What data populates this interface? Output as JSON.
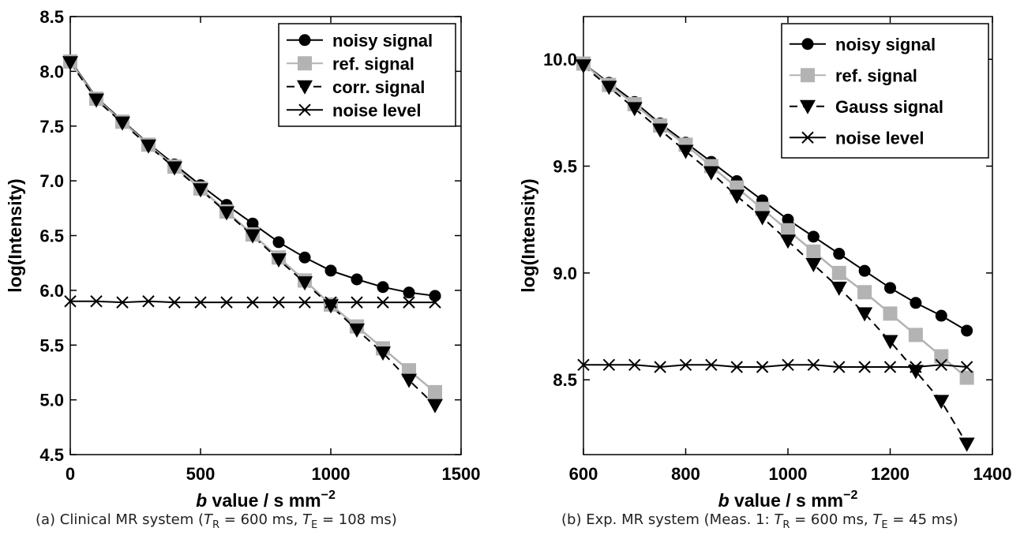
{
  "chart_data": [
    {
      "type": "line",
      "caption": "(a) Clinical MR system (T_R = 600 ms, T_E = 108 ms)",
      "caption_parts": {
        "prefix": "(a) Clinical MR system (",
        "t1": "T",
        "t1_sub": "R",
        "mid": " = 600 ms, ",
        "t2": "T",
        "t2_sub": "E",
        "suffix": " = 108 ms)"
      },
      "xlabel": {
        "italic": "b",
        "text": " value / s mm",
        "sup": "−2"
      },
      "ylabel": "log(Intensity)",
      "xlim": [
        0,
        1500
      ],
      "ylim": [
        4.5,
        8.5
      ],
      "xticks": [
        "0",
        "500",
        "1000",
        "1500"
      ],
      "yticks": [
        "4.5",
        "5.0",
        "5.5",
        "6.0",
        "6.5",
        "7.0",
        "7.5",
        "8.0",
        "8.5"
      ],
      "x": [
        0,
        100,
        200,
        300,
        400,
        500,
        600,
        700,
        800,
        900,
        1000,
        1100,
        1200,
        1300,
        1400
      ],
      "legend_position": "top-right",
      "series": [
        {
          "name": "noisy signal",
          "marker": "circle",
          "color": "#000000",
          "dash": "solid",
          "values": [
            8.1,
            7.76,
            7.55,
            7.34,
            7.15,
            6.96,
            6.78,
            6.61,
            6.44,
            6.3,
            6.18,
            6.1,
            6.03,
            5.98,
            5.95
          ]
        },
        {
          "name": "ref. signal",
          "marker": "square",
          "color": "#b3b3b3",
          "dash": "solid",
          "values": [
            8.09,
            7.75,
            7.54,
            7.33,
            7.13,
            6.93,
            6.72,
            6.51,
            6.3,
            6.09,
            5.87,
            5.67,
            5.47,
            5.27,
            5.07
          ]
        },
        {
          "name": "corr. signal",
          "marker": "triangle-down",
          "color": "#000000",
          "dash": "dashed",
          "values": [
            8.08,
            7.74,
            7.53,
            7.32,
            7.12,
            6.92,
            6.71,
            6.5,
            6.28,
            6.07,
            5.86,
            5.64,
            5.43,
            5.18,
            4.95
          ]
        },
        {
          "name": "noise level",
          "marker": "x",
          "color": "#000000",
          "dash": "solid",
          "values": [
            5.9,
            5.9,
            5.89,
            5.9,
            5.89,
            5.89,
            5.89,
            5.89,
            5.89,
            5.89,
            5.89,
            5.89,
            5.89,
            5.89,
            5.89
          ]
        }
      ]
    },
    {
      "type": "line",
      "caption": "(b) Exp. MR system (Meas. 1: T_R = 600 ms, T_E = 45 ms)",
      "caption_parts": {
        "prefix": "(b) Exp. MR system (Meas. 1: ",
        "t1": "T",
        "t1_sub": "R",
        "mid": " = 600 ms, ",
        "t2": "T",
        "t2_sub": "E",
        "suffix": " = 45 ms)"
      },
      "xlabel": {
        "italic": "b",
        "text": " value / s mm",
        "sup": "−2"
      },
      "ylabel": "log(Intensity)",
      "xlim": [
        600,
        1400
      ],
      "ylim": [
        8.15,
        10.2
      ],
      "xticks": [
        "600",
        "800",
        "1000",
        "1200",
        "1400"
      ],
      "yticks": [
        "8.5",
        "9.0",
        "9.5",
        "10.0"
      ],
      "x": [
        600,
        650,
        700,
        750,
        800,
        850,
        900,
        950,
        1000,
        1050,
        1100,
        1150,
        1200,
        1250,
        1300,
        1350
      ],
      "legend_position": "top-right",
      "series": [
        {
          "name": "noisy signal",
          "marker": "circle",
          "color": "#000000",
          "dash": "solid",
          "values": [
            9.98,
            9.89,
            9.8,
            9.7,
            9.61,
            9.52,
            9.43,
            9.34,
            9.25,
            9.17,
            9.09,
            9.01,
            8.93,
            8.86,
            8.8,
            8.73
          ]
        },
        {
          "name": "ref. signal",
          "marker": "square",
          "color": "#b3b3b3",
          "dash": "solid",
          "values": [
            9.98,
            9.88,
            9.79,
            9.69,
            9.6,
            9.5,
            9.4,
            9.3,
            9.2,
            9.1,
            9.0,
            8.91,
            8.81,
            8.71,
            8.61,
            8.51
          ]
        },
        {
          "name": "Gauss signal",
          "marker": "triangle-down",
          "color": "#000000",
          "dash": "dashed",
          "values": [
            9.97,
            9.87,
            9.77,
            9.67,
            9.57,
            9.47,
            9.36,
            9.26,
            9.15,
            9.04,
            8.93,
            8.81,
            8.68,
            8.54,
            8.4,
            8.2
          ]
        },
        {
          "name": "noise level",
          "marker": "x",
          "color": "#000000",
          "dash": "solid",
          "values": [
            8.57,
            8.57,
            8.57,
            8.56,
            8.57,
            8.57,
            8.56,
            8.56,
            8.57,
            8.57,
            8.56,
            8.56,
            8.56,
            8.56,
            8.57,
            8.56
          ]
        }
      ]
    }
  ]
}
